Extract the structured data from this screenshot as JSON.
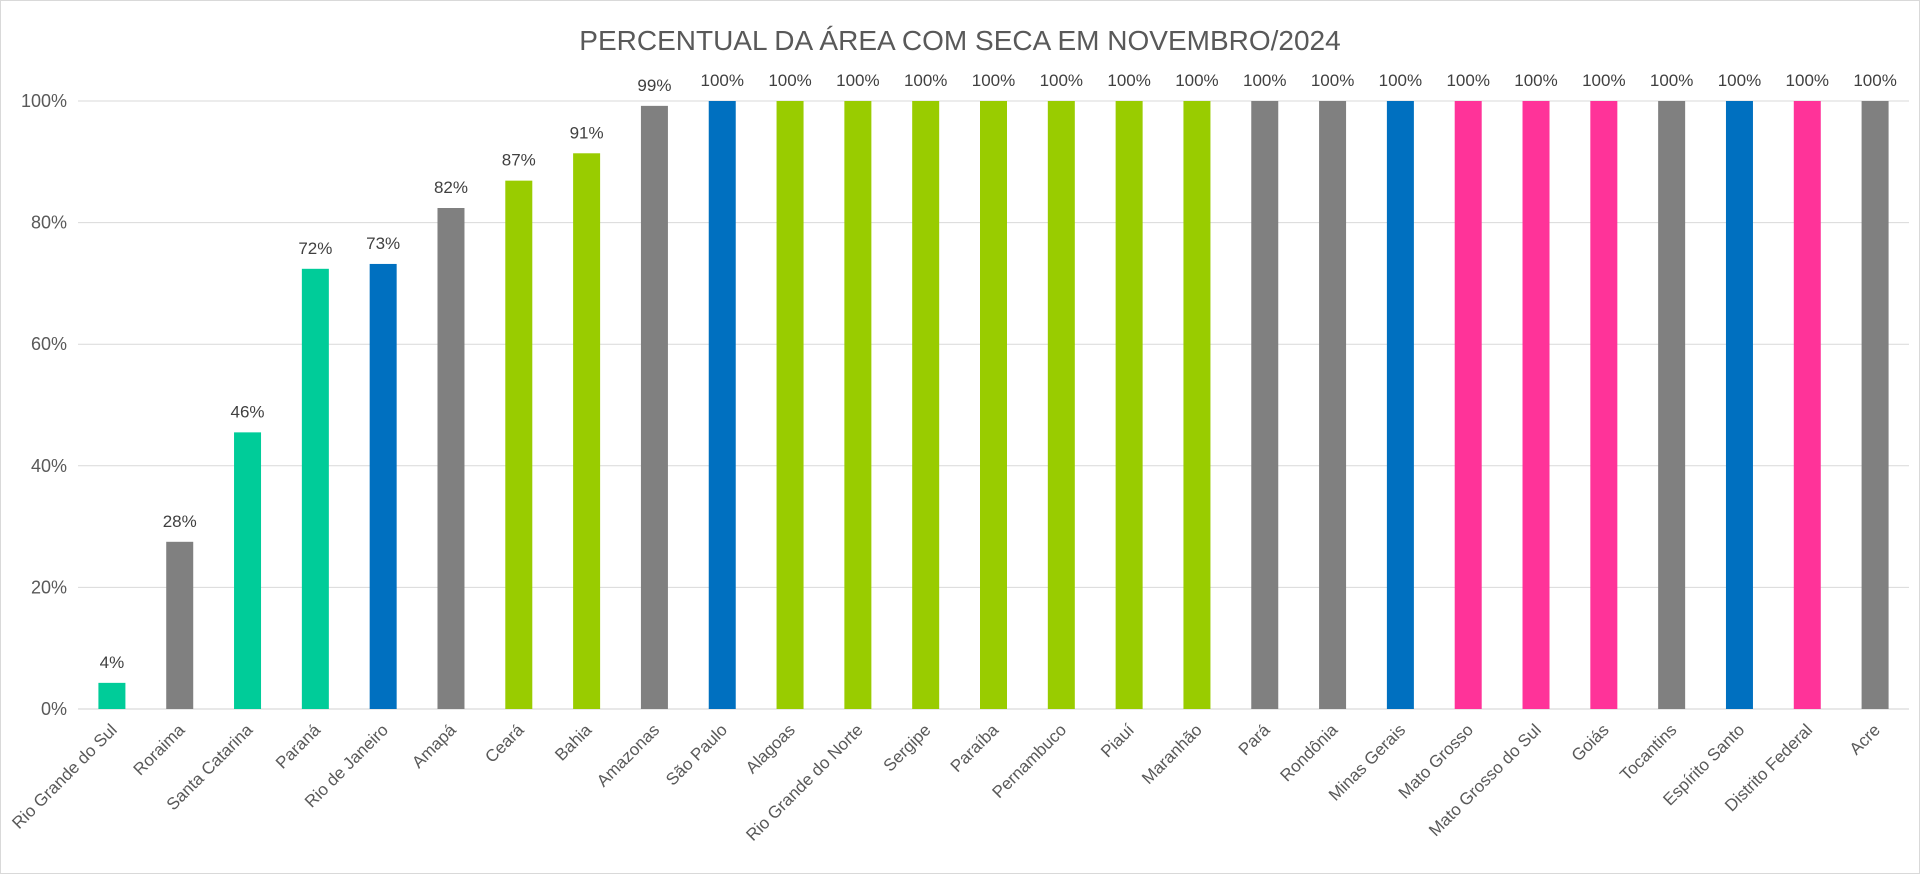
{
  "chart_data": {
    "type": "bar",
    "title": "PERCENTUAL DA ÁREA COM SECA EM NOVEMBRO/2024",
    "xlabel": "",
    "ylabel": "",
    "ylim": [
      0,
      100
    ],
    "yticks": [
      0,
      20,
      40,
      60,
      80,
      100
    ],
    "ytick_labels": [
      "0%",
      "20%",
      "40%",
      "60%",
      "80%",
      "100%"
    ],
    "grid": true,
    "legend": "none",
    "categories": [
      "Rio Grande do Sul",
      "Roraima",
      "Santa Catarina",
      "Paraná",
      "Rio de Janeiro",
      "Amapá",
      "Ceará",
      "Bahia",
      "Amazonas",
      "São Paulo",
      "Alagoas",
      "Rio Grande do Norte",
      "Sergipe",
      "Paraíba",
      "Pernambuco",
      "Piauí",
      "Maranhão",
      "Pará",
      "Rondônia",
      "Minas Gerais",
      "Mato Grosso",
      "Mato Grosso do Sul",
      "Goiás",
      "Tocantins",
      "Espírito Santo",
      "Distrito Federal",
      "Acre"
    ],
    "values": [
      4.3,
      27.5,
      45.5,
      72.4,
      73.2,
      82.4,
      86.9,
      91.4,
      99.2,
      100,
      100,
      100,
      100,
      100,
      100,
      100,
      100,
      100,
      100,
      100,
      100,
      100,
      100,
      100,
      100,
      100,
      100
    ],
    "data_labels": [
      "4%",
      "28%",
      "46%",
      "72%",
      "73%",
      "82%",
      "87%",
      "91%",
      "99%",
      "100%",
      "100%",
      "100%",
      "100%",
      "100%",
      "100%",
      "100%",
      "100%",
      "100%",
      "100%",
      "100%",
      "100%",
      "100%",
      "100%",
      "100%",
      "100%",
      "100%",
      "100%"
    ],
    "colors": [
      "#00CC99",
      "#808080",
      "#00CC99",
      "#00CC99",
      "#0070C0",
      "#808080",
      "#99CC00",
      "#99CC00",
      "#808080",
      "#0070C0",
      "#99CC00",
      "#99CC00",
      "#99CC00",
      "#99CC00",
      "#99CC00",
      "#99CC00",
      "#99CC00",
      "#808080",
      "#808080",
      "#0070C0",
      "#FF3399",
      "#FF3399",
      "#FF3399",
      "#808080",
      "#0070C0",
      "#FF3399",
      "#808080"
    ]
  }
}
